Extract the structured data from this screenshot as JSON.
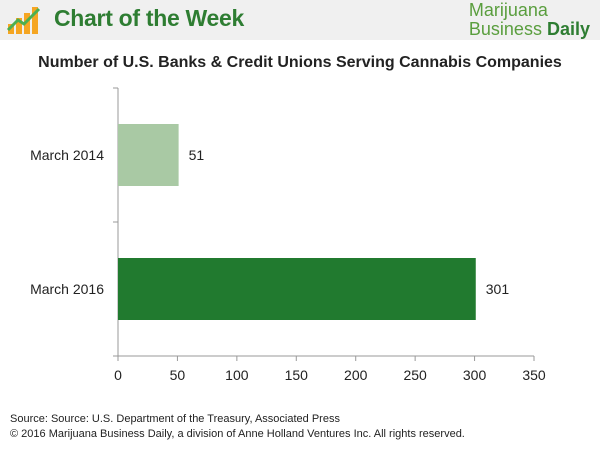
{
  "header": {
    "title": "Chart of the Week",
    "brand_line1": "Marijuana",
    "brand_line2_a": "Business",
    "brand_line2_b": "Daily",
    "accent": "#2e7d32",
    "background": "#f0f0f0"
  },
  "chart_data": {
    "type": "bar",
    "orientation": "horizontal",
    "title": "Number of U.S. Banks & Credit Unions Serving Cannabis Companies",
    "categories": [
      "March 2014",
      "March 2016"
    ],
    "values": [
      51,
      301
    ],
    "data_labels": [
      "51",
      "301"
    ],
    "colors": [
      "#a9c9a4",
      "#217a2f"
    ],
    "xlim": [
      0,
      350
    ],
    "xticks": [
      0,
      50,
      100,
      150,
      200,
      250,
      300,
      350
    ],
    "xlabel": "",
    "ylabel": "",
    "grid": false,
    "legend": "none"
  },
  "footer": {
    "source": "Source: Source: U.S. Department of the Treasury, Associated Press",
    "copyright": "© 2016 Marijuana Business Daily, a division of Anne Holland Ventures Inc. All rights reserved."
  }
}
